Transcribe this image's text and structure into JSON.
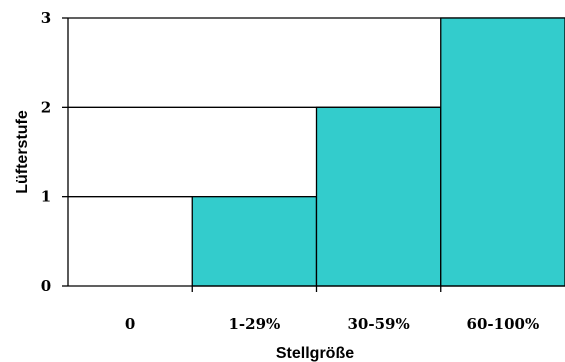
{
  "chart_data": {
    "type": "bar",
    "categories": [
      "0",
      "1-29%",
      "30-59%",
      "60-100%"
    ],
    "values": [
      0,
      1,
      2,
      3
    ],
    "xlabel": "Stellgröße",
    "ylabel": "Lüfterstufe",
    "ylim": [
      0,
      3
    ],
    "yticks": [
      "0",
      "1",
      "2",
      "3"
    ],
    "grid": true,
    "bar_color": "#33cccc",
    "edge_color": "#000000"
  }
}
